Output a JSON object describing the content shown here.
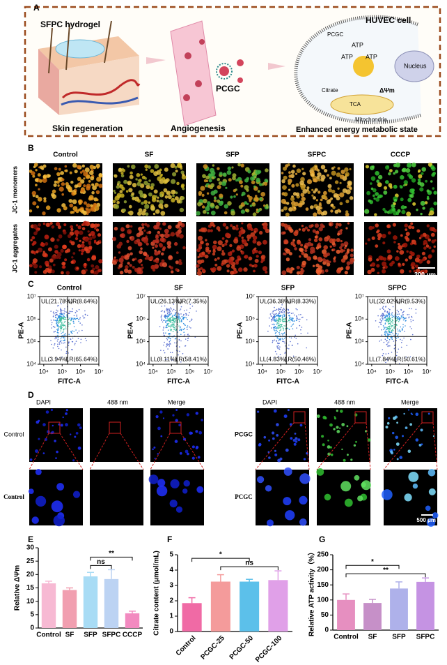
{
  "panel_a": {
    "letter": "A",
    "hydrogel": "SFPC hydrogel",
    "skin": "Skin regeneration",
    "angio": "Angiogenesis",
    "pcgc": "PCGC",
    "cell": "HUVEC cell",
    "pcgc_small": "PCGC",
    "atp": [
      "ATP",
      "ATP",
      "ATP"
    ],
    "nucleus": "Nucleus",
    "citrate": "Citrate",
    "tca": "TCA",
    "dpsi": "ΔΨm",
    "mito": "Mitochondria",
    "state": "Enhanced energy metabolic state"
  },
  "panel_b": {
    "letter": "B",
    "columns": [
      "Control",
      "SF",
      "SFP",
      "SFPC",
      "CCCP"
    ],
    "rows": [
      "JC-1 monomers",
      "JC-1 aggregates"
    ],
    "scale_bar": "200 μm"
  },
  "panel_c": {
    "letter": "C",
    "x_label": "FITC-A",
    "y_label": "PE-A",
    "log": true,
    "xlim": [
      6000,
      10000000
    ],
    "ylim": [
      10000,
      10000000
    ],
    "xticks": [
      {
        "value": 10000,
        "label": "10⁴"
      },
      {
        "value": 100000,
        "label": "10⁵"
      },
      {
        "value": 1000000,
        "label": "10⁶"
      },
      {
        "value": 10000000,
        "label": "10⁷"
      }
    ],
    "yticks": [
      {
        "value": 10000,
        "label": "10⁴"
      },
      {
        "value": 100000,
        "label": "10⁵"
      },
      {
        "value": 1000000,
        "label": "10⁶"
      },
      {
        "value": 10000000,
        "label": "10⁷"
      }
    ],
    "gate": {
      "x": 200000,
      "y": 170000
    },
    "plots": [
      {
        "title": "Control",
        "UL": "UL(21.78%)",
        "UR": "UR(8.64%)",
        "LL": "LL(3.94%)",
        "LR": "LR(65.64%)"
      },
      {
        "title": "SF",
        "UL": "UL(26.13%)",
        "UR": "UR(7.35%)",
        "LL": "LL(8.11%)",
        "LR": "LR(58.41%)"
      },
      {
        "title": "SFP",
        "UL": "UL(36.38%)",
        "UR": "UR(8.33%)",
        "LL": "LL(4.83%)",
        "LR": "LR(50.46%)"
      },
      {
        "title": "SFPC",
        "UL": "UL(32.02%)",
        "UR": "UR(9.53%)",
        "LL": "LL(7.84%)",
        "LR": "LR(50.61%)"
      }
    ]
  },
  "panel_d": {
    "letter": "D",
    "groups": [
      {
        "columns": [
          "DAPI",
          "488 nm",
          "Merge"
        ],
        "row_labels": [
          "Control",
          "Control"
        ]
      },
      {
        "columns": [
          "DAPI",
          "488 nm",
          "Merge"
        ],
        "row_labels": [
          "PCGC",
          "PCGC"
        ]
      }
    ],
    "scale_bar": "500 μm"
  },
  "chart_data": [
    {
      "type": "bar",
      "panel": "E",
      "y_label": "Relative ΔΨm",
      "categories": [
        "Control",
        "SF",
        "SFP",
        "SFPC",
        "CCCP"
      ],
      "values": [
        16.7,
        14.2,
        19.3,
        18.3,
        5.5
      ],
      "errors": [
        0.8,
        0.8,
        1.5,
        3.5,
        0.8
      ],
      "colors": [
        "#f7b9d3",
        "#f19fb0",
        "#a8dcf5",
        "#bcd3f3",
        "#f28ac0"
      ],
      "ylim": [
        0,
        30
      ],
      "yticks": [
        0,
        5,
        10,
        15,
        20,
        25,
        30
      ],
      "annotations": [
        {
          "label": "ns",
          "between": [
            "SFP",
            "SFPC"
          ]
        },
        {
          "label": "**",
          "between": [
            "SFP",
            "CCCP"
          ]
        }
      ]
    },
    {
      "type": "bar",
      "panel": "F",
      "y_label": "Citrate content (μmol/mL)",
      "categories": [
        "Control",
        "PCGC-25",
        "PCGC-50",
        "PCGC-100"
      ],
      "values": [
        1.85,
        3.25,
        3.25,
        3.35
      ],
      "errors": [
        0.35,
        0.45,
        0.15,
        0.6
      ],
      "colors": [
        "#f06aa5",
        "#f49b9b",
        "#5cc0ea",
        "#e0a0e8"
      ],
      "rotate_labels": true,
      "ylim": [
        0,
        5
      ],
      "yticks": [
        0,
        1,
        2,
        3,
        4,
        5
      ],
      "annotations": [
        {
          "label": "ns",
          "between": [
            "PCGC-25",
            "PCGC-100"
          ]
        },
        {
          "label": "*",
          "between": [
            "Control",
            "PCGC-50"
          ]
        }
      ]
    },
    {
      "type": "bar",
      "panel": "G",
      "y_label": "Relative ATP activity（%）",
      "categories": [
        "Control",
        "SF",
        "SFP",
        "SFPC"
      ],
      "values": [
        100,
        90,
        138,
        160
      ],
      "errors": [
        20,
        12,
        22,
        13
      ],
      "colors": [
        "#e68fc0",
        "#c690c8",
        "#aeb1ea",
        "#c593e3"
      ],
      "ylim": [
        0,
        250
      ],
      "yticks": [
        0,
        50,
        100,
        150,
        200,
        250
      ],
      "annotations": [
        {
          "label": "**",
          "between": [
            "Control",
            "SFPC"
          ]
        },
        {
          "label": "*",
          "between": [
            "Control",
            "SFP"
          ]
        }
      ]
    }
  ]
}
